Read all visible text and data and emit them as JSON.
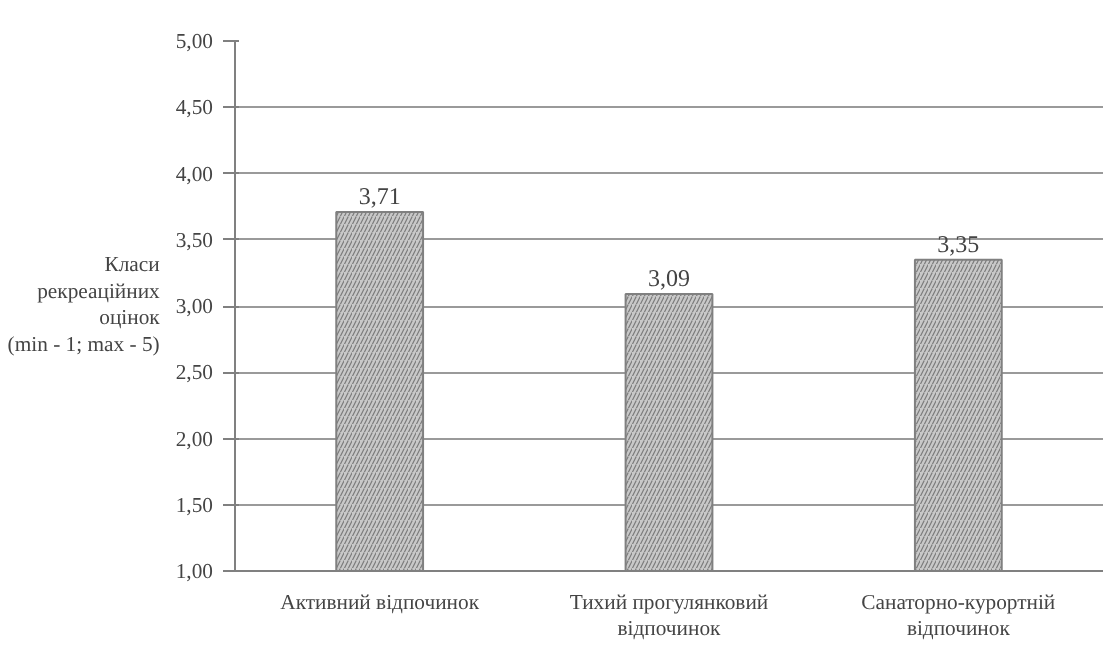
{
  "chart_data": {
    "type": "bar",
    "ylabel": "Класи\nрекреаційних\nоцінок\n(min - 1; max - 5)",
    "categories": [
      "Активний відпочинок",
      "Тихий прогулянковий\nвідпочинок",
      "Санаторно-курортній\nвідпочинок"
    ],
    "values": [
      3.71,
      3.09,
      3.35
    ],
    "color": "#c8c8c8",
    "value_labels": [
      "3,71",
      "3,09",
      "3,35"
    ],
    "ylim": [
      1,
      5
    ],
    "yticks": [
      {
        "value": 1,
        "label": "1,00"
      },
      {
        "value": 1.5,
        "label": "1,50"
      },
      {
        "value": 2,
        "label": "2,00"
      },
      {
        "value": 2.5,
        "label": "2,50"
      },
      {
        "value": 3,
        "label": "3,00"
      },
      {
        "value": 3.5,
        "label": "3,50"
      },
      {
        "value": 4,
        "label": "4,00"
      },
      {
        "value": 4.5,
        "label": "4,50"
      },
      {
        "value": 5,
        "label": "5,00"
      }
    ],
    "grid": "y"
  }
}
